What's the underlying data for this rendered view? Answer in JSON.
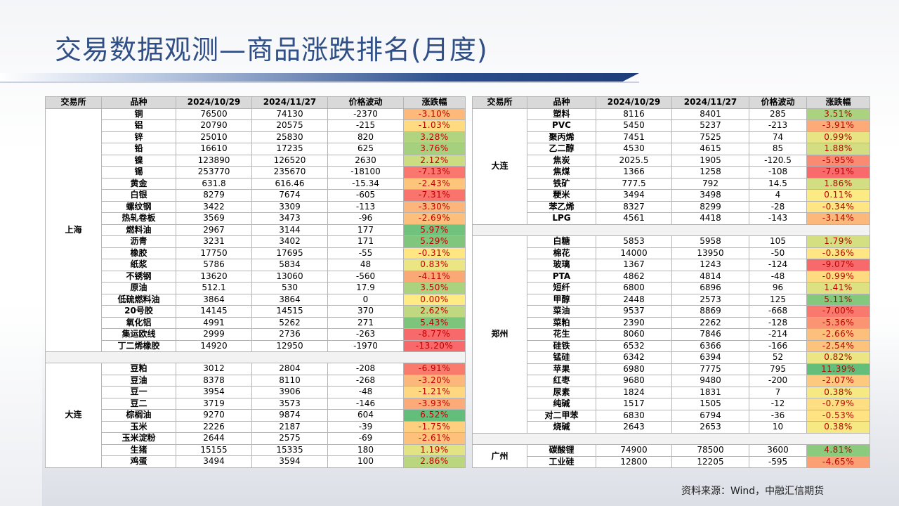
{
  "title": "交易数据观测—商品涨跌排名(月度)",
  "source": "资料来源：Wind，中融汇信期货",
  "headers_left": [
    "交易所",
    "品种",
    "2024/10/29",
    "2024/11/27",
    "价格波动",
    "涨跌幅"
  ],
  "headers_right": [
    "交易所",
    "品种",
    "2024/10/29",
    "2024/11/27",
    "价格波动",
    "涨跌幅"
  ],
  "colors": {
    "green_strong": "#63be7b",
    "red_strong": "#f8696b",
    "neutral": "#ffeb84"
  },
  "left_groups": [
    {
      "exchange": "上海",
      "rows": [
        {
          "name": "铜",
          "d1": "76500",
          "d2": "74130",
          "diff": "-2370",
          "pct": "-3.10%",
          "v": -3.1
        },
        {
          "name": "铝",
          "d1": "20790",
          "d2": "20575",
          "diff": "-215",
          "pct": "-1.03%",
          "v": -1.03
        },
        {
          "name": "锌",
          "d1": "25010",
          "d2": "25830",
          "diff": "820",
          "pct": "3.28%",
          "v": 3.28
        },
        {
          "name": "铅",
          "d1": "16610",
          "d2": "17235",
          "diff": "625",
          "pct": "3.76%",
          "v": 3.76
        },
        {
          "name": "镍",
          "d1": "123890",
          "d2": "126520",
          "diff": "2630",
          "pct": "2.12%",
          "v": 2.12
        },
        {
          "name": "锡",
          "d1": "253770",
          "d2": "235670",
          "diff": "-18100",
          "pct": "-7.13%",
          "v": -7.13
        },
        {
          "name": "黄金",
          "d1": "631.8",
          "d2": "616.46",
          "diff": "-15.34",
          "pct": "-2.43%",
          "v": -2.43
        },
        {
          "name": "白银",
          "d1": "8279",
          "d2": "7674",
          "diff": "-605",
          "pct": "-7.31%",
          "v": -7.31
        },
        {
          "name": "螺纹钢",
          "d1": "3422",
          "d2": "3309",
          "diff": "-113",
          "pct": "-3.30%",
          "v": -3.3
        },
        {
          "name": "热轧卷板",
          "d1": "3569",
          "d2": "3473",
          "diff": "-96",
          "pct": "-2.69%",
          "v": -2.69
        },
        {
          "name": "燃料油",
          "d1": "2967",
          "d2": "3144",
          "diff": "177",
          "pct": "5.97%",
          "v": 5.97
        },
        {
          "name": "沥青",
          "d1": "3231",
          "d2": "3402",
          "diff": "171",
          "pct": "5.29%",
          "v": 5.29
        },
        {
          "name": "橡胶",
          "d1": "17750",
          "d2": "17695",
          "diff": "-55",
          "pct": "-0.31%",
          "v": -0.31
        },
        {
          "name": "纸浆",
          "d1": "5786",
          "d2": "5834",
          "diff": "48",
          "pct": "0.83%",
          "v": 0.83
        },
        {
          "name": "不锈钢",
          "d1": "13620",
          "d2": "13060",
          "diff": "-560",
          "pct": "-4.11%",
          "v": -4.11
        },
        {
          "name": "原油",
          "d1": "512.1",
          "d2": "530",
          "diff": "17.9",
          "pct": "3.50%",
          "v": 3.5
        },
        {
          "name": "低硫燃料油",
          "d1": "3864",
          "d2": "3864",
          "diff": "0",
          "pct": "0.00%",
          "v": 0.0
        },
        {
          "name": "20号胶",
          "d1": "14145",
          "d2": "14515",
          "diff": "370",
          "pct": "2.62%",
          "v": 2.62
        },
        {
          "name": "氧化铝",
          "d1": "4991",
          "d2": "5262",
          "diff": "271",
          "pct": "5.43%",
          "v": 5.43
        },
        {
          "name": "集运欧线",
          "d1": "2999",
          "d2": "2736",
          "diff": "-263",
          "pct": "-8.77%",
          "v": -8.77
        },
        {
          "name": "丁二烯橡胶",
          "d1": "14920",
          "d2": "12950",
          "diff": "-1970",
          "pct": "-13.20%",
          "v": -13.2
        }
      ]
    },
    {
      "exchange": "大连",
      "rows": [
        {
          "name": "豆粕",
          "d1": "3012",
          "d2": "2804",
          "diff": "-208",
          "pct": "-6.91%",
          "v": -6.91
        },
        {
          "name": "豆油",
          "d1": "8378",
          "d2": "8110",
          "diff": "-268",
          "pct": "-3.20%",
          "v": -3.2
        },
        {
          "name": "豆一",
          "d1": "3954",
          "d2": "3906",
          "diff": "-48",
          "pct": "-1.21%",
          "v": -1.21
        },
        {
          "name": "豆二",
          "d1": "3719",
          "d2": "3573",
          "diff": "-146",
          "pct": "-3.93%",
          "v": -3.93
        },
        {
          "name": "棕榈油",
          "d1": "9270",
          "d2": "9874",
          "diff": "604",
          "pct": "6.52%",
          "v": 6.52
        },
        {
          "name": "玉米",
          "d1": "2226",
          "d2": "2187",
          "diff": "-39",
          "pct": "-1.75%",
          "v": -1.75
        },
        {
          "name": "玉米淀粉",
          "d1": "2644",
          "d2": "2575",
          "diff": "-69",
          "pct": "-2.61%",
          "v": -2.61
        },
        {
          "name": "生猪",
          "d1": "15155",
          "d2": "15335",
          "diff": "180",
          "pct": "1.19%",
          "v": 1.19
        },
        {
          "name": "鸡蛋",
          "d1": "3494",
          "d2": "3594",
          "diff": "100",
          "pct": "2.86%",
          "v": 2.86
        }
      ]
    }
  ],
  "right_groups": [
    {
      "exchange": "大连",
      "rows": [
        {
          "name": "塑料",
          "d1": "8116",
          "d2": "8401",
          "diff": "285",
          "pct": "3.51%",
          "v": 3.51
        },
        {
          "name": "PVC",
          "d1": "5450",
          "d2": "5237",
          "diff": "-213",
          "pct": "-3.91%",
          "v": -3.91
        },
        {
          "name": "聚丙烯",
          "d1": "7451",
          "d2": "7525",
          "diff": "74",
          "pct": "0.99%",
          "v": 0.99
        },
        {
          "name": "乙二醇",
          "d1": "4530",
          "d2": "4615",
          "diff": "85",
          "pct": "1.88%",
          "v": 1.88
        },
        {
          "name": "焦炭",
          "d1": "2025.5",
          "d2": "1905",
          "diff": "-120.5",
          "pct": "-5.95%",
          "v": -5.95
        },
        {
          "name": "焦煤",
          "d1": "1366",
          "d2": "1258",
          "diff": "-108",
          "pct": "-7.91%",
          "v": -7.91
        },
        {
          "name": "铁矿",
          "d1": "777.5",
          "d2": "792",
          "diff": "14.5",
          "pct": "1.86%",
          "v": 1.86
        },
        {
          "name": "粳米",
          "d1": "3494",
          "d2": "3498",
          "diff": "4",
          "pct": "0.11%",
          "v": 0.11
        },
        {
          "name": "苯乙烯",
          "d1": "8327",
          "d2": "8299",
          "diff": "-28",
          "pct": "-0.34%",
          "v": -0.34
        },
        {
          "name": "LPG",
          "d1": "4561",
          "d2": "4418",
          "diff": "-143",
          "pct": "-3.14%",
          "v": -3.14
        }
      ]
    },
    {
      "exchange": "郑州",
      "rows": [
        {
          "name": "白糖",
          "d1": "5853",
          "d2": "5958",
          "diff": "105",
          "pct": "1.79%",
          "v": 1.79
        },
        {
          "name": "棉花",
          "d1": "14000",
          "d2": "13950",
          "diff": "-50",
          "pct": "-0.36%",
          "v": -0.36
        },
        {
          "name": "玻璃",
          "d1": "1367",
          "d2": "1243",
          "diff": "-124",
          "pct": "-9.07%",
          "v": -9.07
        },
        {
          "name": "PTA",
          "d1": "4862",
          "d2": "4814",
          "diff": "-48",
          "pct": "-0.99%",
          "v": -0.99
        },
        {
          "name": "短纤",
          "d1": "6800",
          "d2": "6896",
          "diff": "96",
          "pct": "1.41%",
          "v": 1.41
        },
        {
          "name": "甲醇",
          "d1": "2448",
          "d2": "2573",
          "diff": "125",
          "pct": "5.11%",
          "v": 5.11
        },
        {
          "name": "菜油",
          "d1": "9537",
          "d2": "8869",
          "diff": "-668",
          "pct": "-7.00%",
          "v": -7.0
        },
        {
          "name": "菜粕",
          "d1": "2390",
          "d2": "2262",
          "diff": "-128",
          "pct": "-5.36%",
          "v": -5.36
        },
        {
          "name": "花生",
          "d1": "8060",
          "d2": "7846",
          "diff": "-214",
          "pct": "-2.66%",
          "v": -2.66
        },
        {
          "name": "硅铁",
          "d1": "6532",
          "d2": "6366",
          "diff": "-166",
          "pct": "-2.54%",
          "v": -2.54
        },
        {
          "name": "锰硅",
          "d1": "6342",
          "d2": "6394",
          "diff": "52",
          "pct": "0.82%",
          "v": 0.82
        },
        {
          "name": "苹果",
          "d1": "6980",
          "d2": "7775",
          "diff": "795",
          "pct": "11.39%",
          "v": 11.39
        },
        {
          "name": "红枣",
          "d1": "9680",
          "d2": "9480",
          "diff": "-200",
          "pct": "-2.07%",
          "v": -2.07
        },
        {
          "name": "尿素",
          "d1": "1824",
          "d2": "1831",
          "diff": "7",
          "pct": "0.38%",
          "v": 0.38
        },
        {
          "name": "纯碱",
          "d1": "1517",
          "d2": "1505",
          "diff": "-12",
          "pct": "-0.79%",
          "v": -0.79
        },
        {
          "name": "对二甲苯",
          "d1": "6830",
          "d2": "6794",
          "diff": "-36",
          "pct": "-0.53%",
          "v": -0.53
        },
        {
          "name": "烧碱",
          "d1": "2643",
          "d2": "2653",
          "diff": "10",
          "pct": "0.38%",
          "v": 0.38
        }
      ]
    },
    {
      "exchange": "广州",
      "rows": [
        {
          "name": "碳酸锂",
          "d1": "74900",
          "d2": "78500",
          "diff": "3600",
          "pct": "4.81%",
          "v": 4.81
        },
        {
          "name": "工业硅",
          "d1": "12800",
          "d2": "12205",
          "diff": "-595",
          "pct": "-4.65%",
          "v": -4.65
        }
      ]
    }
  ]
}
